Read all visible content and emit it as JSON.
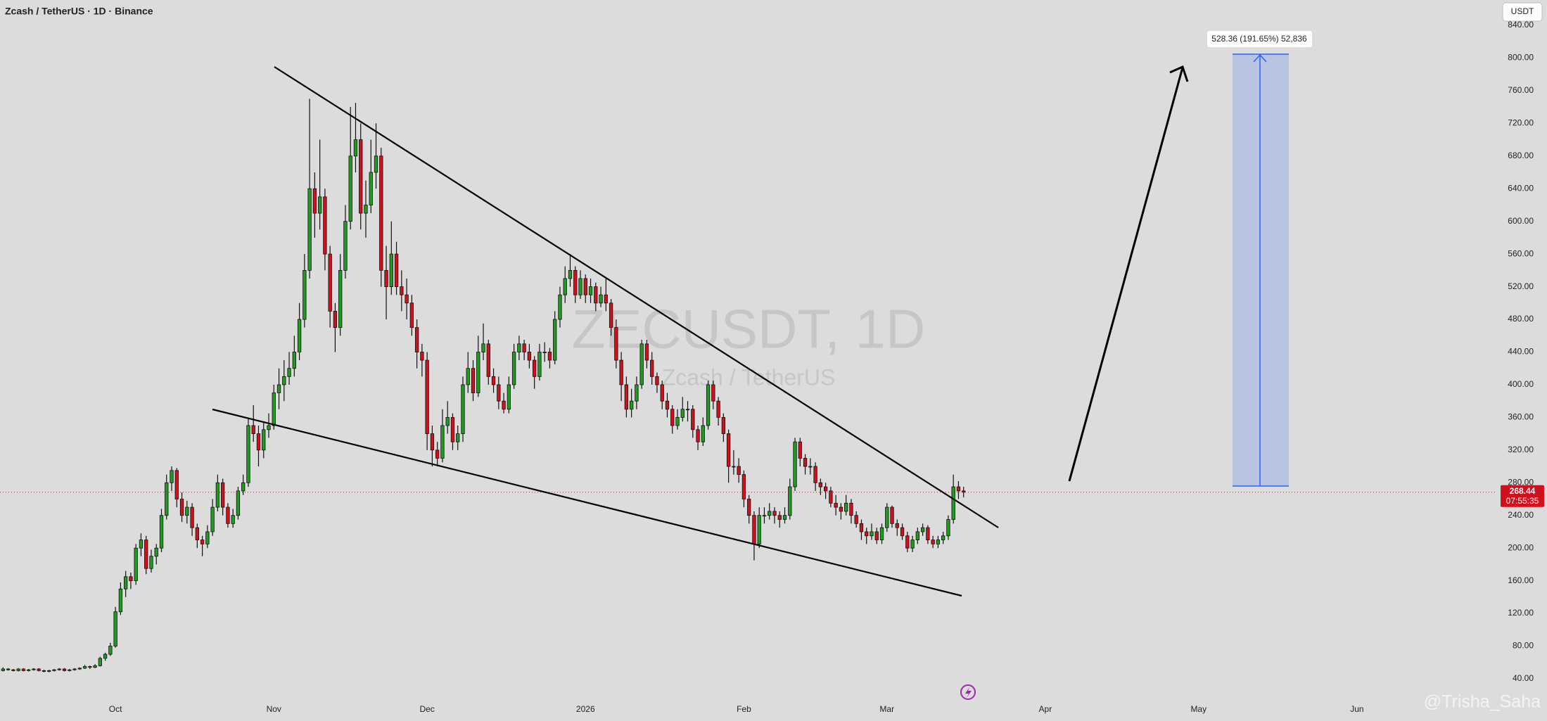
{
  "chart_data": {
    "type": "candlestick",
    "title": "Zcash / TetherUS · 1D · Binance",
    "watermark": "ZECUSDT, 1D",
    "watermark_sub": "Zcash / TetherUS",
    "currency": "USDT",
    "measure_label": "528.36 (191.65%) 52,836",
    "countdown": "07:55:35",
    "author": "@Trisha_Saha",
    "up_color": "#1f9c1f",
    "down_color": "#d1101d",
    "grid": false,
    "xlim": [
      -22.6,
      270
    ],
    "ylim": [
      15,
      871
    ],
    "xticks": [
      {
        "value": 0,
        "label": "Oct"
      },
      {
        "value": 31,
        "label": "Nov"
      },
      {
        "value": 61,
        "label": "Dec"
      },
      {
        "value": 92,
        "label": "2026"
      },
      {
        "value": 123,
        "label": "Feb"
      },
      {
        "value": 151,
        "label": "Mar"
      },
      {
        "value": 182,
        "label": "Apr"
      },
      {
        "value": 212,
        "label": "May"
      },
      {
        "value": 243,
        "label": "Jun"
      }
    ],
    "yticks": [
      {
        "value": 40,
        "label": "40.00"
      },
      {
        "value": 80,
        "label": "80.00"
      },
      {
        "value": 120,
        "label": "120.00"
      },
      {
        "value": 160,
        "label": "160.00"
      },
      {
        "value": 200,
        "label": "200.00"
      },
      {
        "value": 240,
        "label": "240.00"
      },
      {
        "value": 280,
        "label": "280.00"
      },
      {
        "value": 320,
        "label": "320.00"
      },
      {
        "value": 360,
        "label": "360.00"
      },
      {
        "value": 400,
        "label": "400.00"
      },
      {
        "value": 440,
        "label": "440.00"
      },
      {
        "value": 480,
        "label": "480.00"
      },
      {
        "value": 520,
        "label": "520.00"
      },
      {
        "value": 560,
        "label": "560.00"
      },
      {
        "value": 600,
        "label": "600.00"
      },
      {
        "value": 640,
        "label": "640.00"
      },
      {
        "value": 680,
        "label": "680.00"
      },
      {
        "value": 720,
        "label": "720.00"
      },
      {
        "value": 760,
        "label": "760.00"
      },
      {
        "value": 800,
        "label": "800.00"
      },
      {
        "value": 840,
        "label": "840.00"
      }
    ],
    "x": [
      -22,
      -21,
      -20,
      -19,
      -18,
      -17,
      -16,
      -15,
      -14,
      -13,
      -12,
      -11,
      -10,
      -9,
      -8,
      -7,
      -6,
      -5,
      -4,
      -3,
      -2,
      -1,
      0,
      1,
      2,
      3,
      4,
      5,
      6,
      7,
      8,
      9,
      10,
      11,
      12,
      13,
      14,
      15,
      16,
      17,
      18,
      19,
      20,
      21,
      22,
      23,
      24,
      25,
      26,
      27,
      28,
      29,
      30,
      31,
      32,
      33,
      34,
      35,
      36,
      37,
      38,
      39,
      40,
      41,
      42,
      43,
      44,
      45,
      46,
      47,
      48,
      49,
      50,
      51,
      52,
      53,
      54,
      55,
      56,
      57,
      58,
      59,
      60,
      61,
      62,
      63,
      64,
      65,
      66,
      67,
      68,
      69,
      70,
      71,
      72,
      73,
      74,
      75,
      76,
      77,
      78,
      79,
      80,
      81,
      82,
      83,
      84,
      85,
      86,
      87,
      88,
      89,
      90,
      91,
      92,
      93,
      94,
      95,
      96,
      97,
      98,
      99,
      100,
      101,
      102,
      103,
      104,
      105,
      106,
      107,
      108,
      109,
      110,
      111,
      112,
      113,
      114,
      115,
      116,
      117,
      118,
      119,
      120,
      121,
      122,
      123,
      124,
      125,
      126,
      127,
      128,
      129,
      130,
      131,
      132,
      133,
      134,
      135,
      136,
      137,
      138,
      139,
      140,
      141,
      142,
      143,
      144,
      145,
      146,
      147,
      148,
      149,
      150,
      151,
      152,
      153,
      154,
      155,
      156,
      157,
      158,
      159,
      160,
      161,
      162,
      163,
      164,
      165,
      166
    ],
    "candles": [
      [
        50,
        54,
        49,
        52
      ],
      [
        52,
        53,
        50,
        51
      ],
      [
        51,
        52,
        49,
        50
      ],
      [
        50,
        53,
        49,
        52
      ],
      [
        52,
        53,
        49,
        50
      ],
      [
        50,
        52,
        49,
        51
      ],
      [
        51,
        53,
        50,
        52
      ],
      [
        52,
        53,
        49,
        50
      ],
      [
        50,
        51,
        48,
        49
      ],
      [
        49,
        51,
        48,
        50
      ],
      [
        50,
        52,
        49,
        51
      ],
      [
        51,
        53,
        50,
        52
      ],
      [
        52,
        53,
        49,
        50
      ],
      [
        50,
        52,
        49,
        51
      ],
      [
        51,
        53,
        50,
        52
      ],
      [
        52,
        54,
        51,
        53
      ],
      [
        53,
        57,
        52,
        55
      ],
      [
        55,
        56,
        52,
        54
      ],
      [
        54,
        58,
        53,
        56
      ],
      [
        56,
        67,
        55,
        65
      ],
      [
        65,
        72,
        62,
        70
      ],
      [
        70,
        84,
        68,
        80
      ],
      [
        80,
        128,
        78,
        122
      ],
      [
        122,
        158,
        118,
        150
      ],
      [
        150,
        172,
        140,
        165
      ],
      [
        165,
        170,
        150,
        160
      ],
      [
        160,
        205,
        155,
        200
      ],
      [
        200,
        218,
        190,
        210
      ],
      [
        210,
        215,
        168,
        175
      ],
      [
        175,
        198,
        170,
        190
      ],
      [
        190,
        205,
        180,
        200
      ],
      [
        200,
        248,
        195,
        240
      ],
      [
        240,
        290,
        235,
        280
      ],
      [
        280,
        300,
        270,
        295
      ],
      [
        295,
        298,
        250,
        260
      ],
      [
        260,
        268,
        232,
        240
      ],
      [
        240,
        258,
        230,
        250
      ],
      [
        250,
        255,
        215,
        225
      ],
      [
        225,
        230,
        200,
        210
      ],
      [
        210,
        215,
        190,
        205
      ],
      [
        205,
        228,
        200,
        220
      ],
      [
        220,
        260,
        215,
        250
      ],
      [
        250,
        290,
        245,
        280
      ],
      [
        280,
        285,
        240,
        250
      ],
      [
        250,
        255,
        225,
        230
      ],
      [
        230,
        248,
        225,
        240
      ],
      [
        240,
        275,
        235,
        270
      ],
      [
        270,
        290,
        265,
        280
      ],
      [
        280,
        360,
        275,
        350
      ],
      [
        350,
        375,
        330,
        340
      ],
      [
        340,
        350,
        300,
        320
      ],
      [
        320,
        355,
        310,
        345
      ],
      [
        345,
        365,
        335,
        350
      ],
      [
        350,
        400,
        345,
        390
      ],
      [
        390,
        420,
        370,
        400
      ],
      [
        400,
        430,
        380,
        410
      ],
      [
        410,
        440,
        400,
        420
      ],
      [
        420,
        460,
        410,
        440
      ],
      [
        440,
        500,
        430,
        480
      ],
      [
        480,
        560,
        470,
        540
      ],
      [
        540,
        750,
        530,
        640
      ],
      [
        640,
        660,
        580,
        610
      ],
      [
        610,
        700,
        590,
        630
      ],
      [
        630,
        640,
        540,
        560
      ],
      [
        560,
        570,
        470,
        490
      ],
      [
        490,
        500,
        440,
        470
      ],
      [
        470,
        560,
        460,
        540
      ],
      [
        540,
        620,
        530,
        600
      ],
      [
        600,
        740,
        590,
        680
      ],
      [
        680,
        745,
        660,
        700
      ],
      [
        700,
        720,
        590,
        610
      ],
      [
        610,
        650,
        580,
        620
      ],
      [
        620,
        700,
        610,
        660
      ],
      [
        660,
        720,
        640,
        680
      ],
      [
        680,
        690,
        520,
        540
      ],
      [
        540,
        570,
        480,
        520
      ],
      [
        520,
        600,
        510,
        560
      ],
      [
        560,
        575,
        510,
        520
      ],
      [
        520,
        540,
        490,
        510
      ],
      [
        510,
        530,
        480,
        500
      ],
      [
        500,
        510,
        460,
        470
      ],
      [
        470,
        480,
        420,
        440
      ],
      [
        440,
        450,
        410,
        430
      ],
      [
        430,
        440,
        320,
        340
      ],
      [
        340,
        350,
        300,
        320
      ],
      [
        320,
        330,
        300,
        310
      ],
      [
        310,
        370,
        305,
        350
      ],
      [
        350,
        380,
        340,
        360
      ],
      [
        360,
        365,
        320,
        330
      ],
      [
        330,
        350,
        320,
        340
      ],
      [
        340,
        410,
        330,
        400
      ],
      [
        400,
        440,
        390,
        420
      ],
      [
        420,
        430,
        380,
        390
      ],
      [
        390,
        460,
        385,
        440
      ],
      [
        440,
        475,
        430,
        450
      ],
      [
        450,
        455,
        400,
        410
      ],
      [
        410,
        420,
        390,
        400
      ],
      [
        400,
        410,
        370,
        380
      ],
      [
        380,
        390,
        365,
        370
      ],
      [
        370,
        410,
        365,
        400
      ],
      [
        400,
        450,
        395,
        440
      ],
      [
        440,
        460,
        430,
        450
      ],
      [
        450,
        455,
        430,
        440
      ],
      [
        440,
        450,
        420,
        430
      ],
      [
        430,
        435,
        395,
        410
      ],
      [
        410,
        450,
        405,
        440
      ],
      [
        440,
        452,
        428,
        440
      ],
      [
        440,
        445,
        420,
        430
      ],
      [
        430,
        490,
        425,
        480
      ],
      [
        480,
        520,
        470,
        510
      ],
      [
        510,
        545,
        500,
        530
      ],
      [
        530,
        560,
        520,
        540
      ],
      [
        540,
        545,
        500,
        510
      ],
      [
        510,
        540,
        505,
        530
      ],
      [
        530,
        535,
        500,
        510
      ],
      [
        510,
        530,
        500,
        520
      ],
      [
        520,
        525,
        490,
        500
      ],
      [
        500,
        520,
        495,
        510
      ],
      [
        510,
        530,
        490,
        500
      ],
      [
        500,
        505,
        460,
        470
      ],
      [
        470,
        480,
        420,
        430
      ],
      [
        430,
        440,
        380,
        400
      ],
      [
        400,
        410,
        360,
        370
      ],
      [
        370,
        395,
        360,
        380
      ],
      [
        380,
        410,
        370,
        400
      ],
      [
        400,
        455,
        395,
        450
      ],
      [
        450,
        455,
        420,
        430
      ],
      [
        430,
        440,
        400,
        410
      ],
      [
        410,
        415,
        390,
        400
      ],
      [
        400,
        405,
        370,
        380
      ],
      [
        380,
        390,
        360,
        370
      ],
      [
        370,
        375,
        340,
        350
      ],
      [
        350,
        370,
        345,
        360
      ],
      [
        360,
        385,
        355,
        370
      ],
      [
        370,
        380,
        355,
        370
      ],
      [
        370,
        375,
        335,
        345
      ],
      [
        345,
        350,
        320,
        330
      ],
      [
        330,
        360,
        325,
        350
      ],
      [
        350,
        405,
        345,
        400
      ],
      [
        400,
        405,
        370,
        380
      ],
      [
        380,
        385,
        350,
        360
      ],
      [
        360,
        365,
        330,
        340
      ],
      [
        340,
        345,
        280,
        300
      ],
      [
        300,
        320,
        290,
        300
      ],
      [
        300,
        310,
        280,
        290
      ],
      [
        290,
        295,
        250,
        260
      ],
      [
        260,
        265,
        230,
        240
      ],
      [
        240,
        245,
        185,
        205
      ],
      [
        205,
        250,
        200,
        240
      ],
      [
        240,
        250,
        230,
        240
      ],
      [
        240,
        255,
        235,
        245
      ],
      [
        245,
        250,
        230,
        240
      ],
      [
        240,
        245,
        225,
        235
      ],
      [
        235,
        250,
        230,
        240
      ],
      [
        240,
        285,
        235,
        275
      ],
      [
        275,
        335,
        270,
        330
      ],
      [
        330,
        335,
        300,
        310
      ],
      [
        310,
        315,
        290,
        300
      ],
      [
        300,
        310,
        290,
        300
      ],
      [
        300,
        305,
        270,
        280
      ],
      [
        280,
        285,
        265,
        275
      ],
      [
        275,
        280,
        260,
        270
      ],
      [
        270,
        275,
        250,
        255
      ],
      [
        255,
        265,
        240,
        250
      ],
      [
        250,
        255,
        235,
        245
      ],
      [
        245,
        265,
        240,
        255
      ],
      [
        255,
        260,
        230,
        240
      ],
      [
        240,
        245,
        225,
        230
      ],
      [
        230,
        235,
        210,
        220
      ],
      [
        220,
        225,
        205,
        215
      ],
      [
        215,
        230,
        210,
        220
      ],
      [
        220,
        225,
        205,
        210
      ],
      [
        210,
        230,
        205,
        225
      ],
      [
        225,
        255,
        220,
        250
      ],
      [
        250,
        252,
        225,
        230
      ],
      [
        230,
        235,
        215,
        225
      ],
      [
        225,
        230,
        210,
        215
      ],
      [
        215,
        220,
        195,
        200
      ],
      [
        200,
        215,
        195,
        210
      ],
      [
        210,
        225,
        205,
        220
      ],
      [
        220,
        230,
        215,
        225
      ],
      [
        225,
        228,
        205,
        210
      ],
      [
        210,
        215,
        200,
        205
      ],
      [
        205,
        215,
        200,
        210
      ],
      [
        210,
        220,
        205,
        215
      ],
      [
        215,
        240,
        210,
        235
      ],
      [
        235,
        290,
        230,
        275
      ],
      [
        275,
        282,
        260,
        270
      ],
      [
        270,
        275,
        262,
        268.44
      ]
    ]
  }
}
